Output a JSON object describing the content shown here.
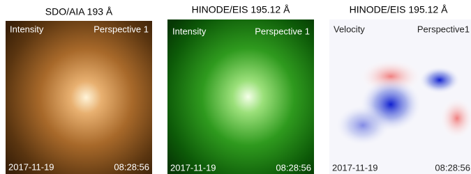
{
  "panels": [
    {
      "title": "SDO/AIA 193 Å",
      "top_left": "Intensity",
      "top_right": "Perspective 1",
      "bottom_left": "2017-11-19",
      "bottom_right": "08:28:56"
    },
    {
      "title": "HINODE/EIS 195.12 Å",
      "top_left": "Intensity",
      "top_right": "Perspective 1",
      "bottom_left": "2017-11-19",
      "bottom_right": "08:28:56"
    },
    {
      "title": "HINODE/EIS 195.12 Å",
      "top_left": "Velocity",
      "top_right": "Perspective1",
      "bottom_left": "2017-11-19",
      "bottom_right": "08:28:56"
    }
  ]
}
